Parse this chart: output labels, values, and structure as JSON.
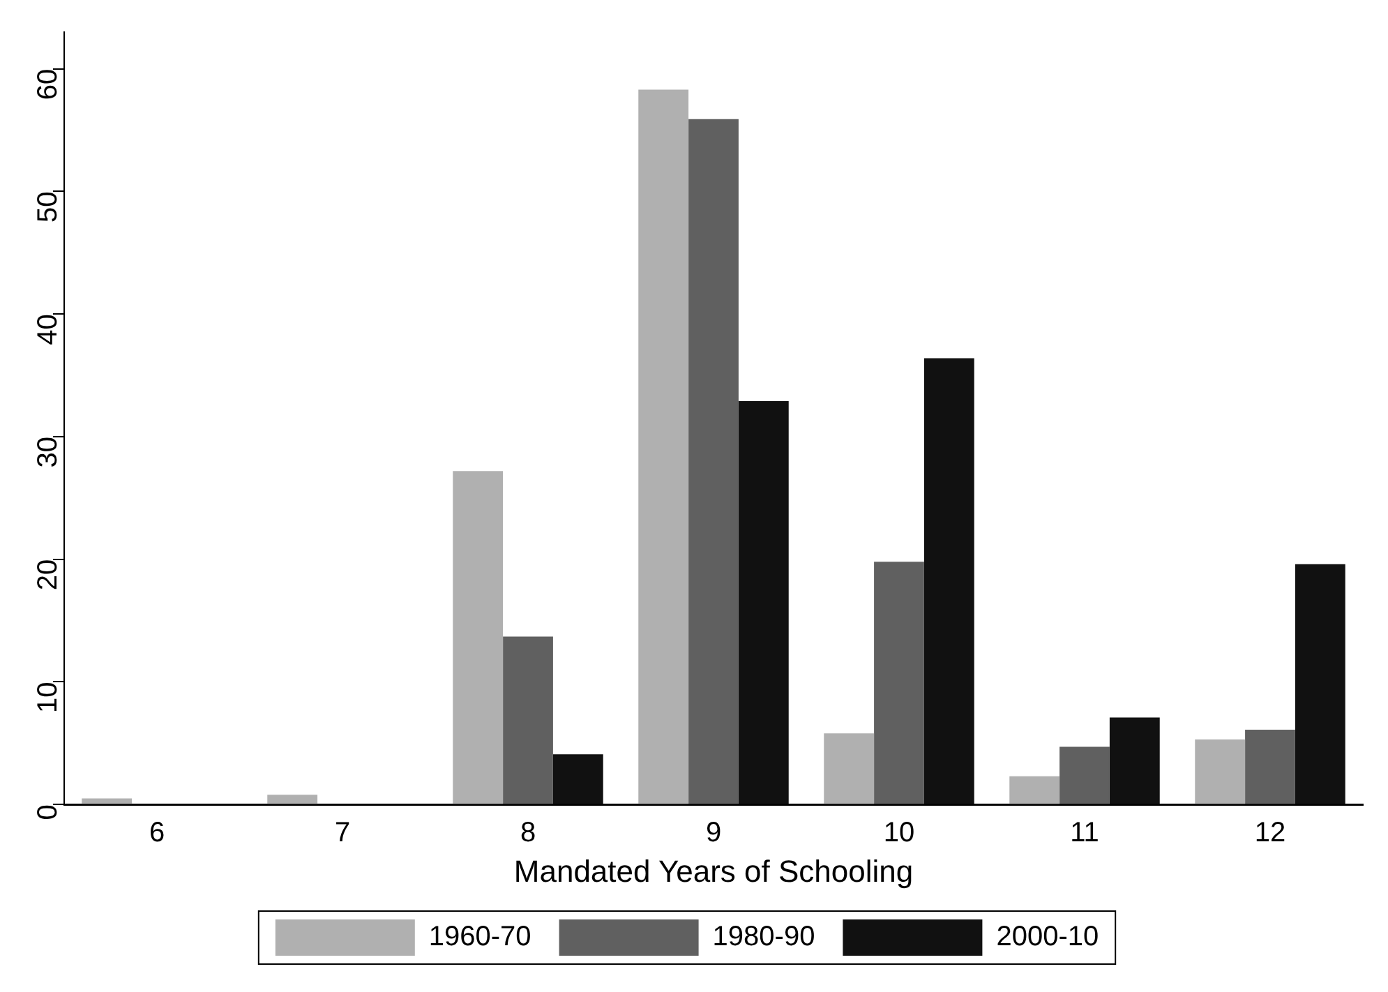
{
  "chart_data": {
    "type": "bar",
    "xlabel": "Mandated Years of Schooling",
    "categories": [
      "6",
      "7",
      "8",
      "9",
      "10",
      "11",
      "12"
    ],
    "series": [
      {
        "name": "1960-70",
        "color": "#b0b0b0",
        "values": [
          0.5,
          0.8,
          27.2,
          58.3,
          5.8,
          2.3,
          5.3
        ]
      },
      {
        "name": "1980-90",
        "color": "#606060",
        "values": [
          0,
          0,
          13.7,
          55.9,
          19.8,
          4.7,
          6.1
        ]
      },
      {
        "name": "2000-10",
        "color": "#111111",
        "values": [
          0,
          0,
          4.1,
          32.9,
          36.4,
          7.1,
          19.6
        ]
      }
    ],
    "ylim": [
      0,
      63
    ],
    "yticks": [
      0,
      10,
      20,
      30,
      40,
      50,
      60
    ],
    "grid": false,
    "legend": "bottom"
  }
}
